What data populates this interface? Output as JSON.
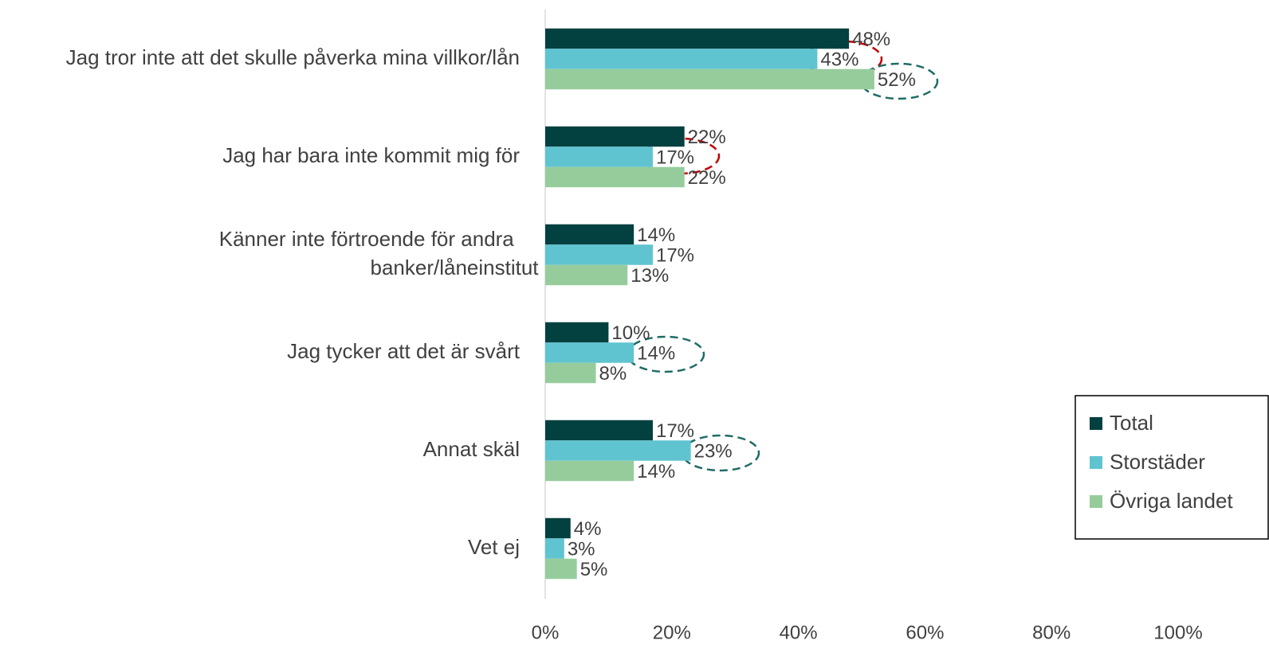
{
  "chart_data": {
    "type": "bar",
    "orientation": "horizontal",
    "categories": [
      "Jag tror inte att det skulle påverka mina villkor/lån",
      "Jag har bara inte kommit mig för",
      "Känner inte förtroende för andra banker/låneinstitut",
      "Jag tycker att det är svårt",
      "Annat skäl",
      "Vet ej"
    ],
    "series": [
      {
        "name": "Total",
        "color": "#034040",
        "values": [
          48,
          22,
          14,
          10,
          17,
          4
        ],
        "value_labels": [
          "48%",
          "22%",
          "14%",
          "10%",
          "17%",
          "4%"
        ]
      },
      {
        "name": "Storstäder",
        "color": "#5fc4d0",
        "values": [
          43,
          17,
          17,
          14,
          23,
          3
        ],
        "value_labels": [
          "43%",
          "17%",
          "17%",
          "14%",
          "23%",
          "3%"
        ]
      },
      {
        "name": "Övriga landet",
        "color": "#96cc9c",
        "values": [
          52,
          22,
          13,
          8,
          14,
          5
        ],
        "value_labels": [
          "52%",
          "22%",
          "13%",
          "8%",
          "14%",
          "5%"
        ]
      }
    ],
    "xlim": [
      0,
      100
    ],
    "xticks": [
      {
        "value": 0,
        "label": "0%"
      },
      {
        "value": 20,
        "label": "20%"
      },
      {
        "value": 40,
        "label": "40%"
      },
      {
        "value": 60,
        "label": "60%"
      },
      {
        "value": 80,
        "label": "80%"
      },
      {
        "value": 100,
        "label": "100%"
      }
    ],
    "grid": false,
    "legend": "right"
  }
}
